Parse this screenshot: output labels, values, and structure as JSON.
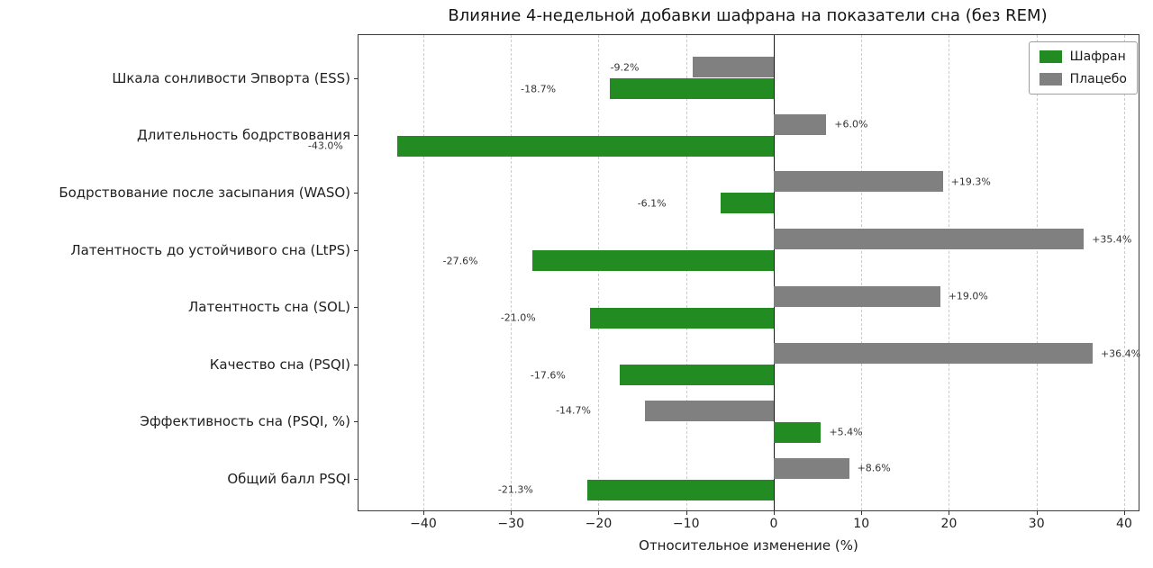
{
  "chart_data": {
    "type": "bar",
    "orientation": "horizontal",
    "title": "Влияние 4-недельной добавки шафрана на показатели сна (без REM)",
    "xlabel": "Относительное изменение (%)",
    "ylabel": "",
    "categories": [
      "Шкала сонливости Эпворта (ESS)",
      "Длительность бодрствования",
      "Бодрствование после засыпания (WASO)",
      "Латентность до устойчивого сна (LtPS)",
      "Латентность сна (SOL)",
      "Качество сна (PSQI)",
      "Эффективность сна (PSQI, %)",
      "Общий балл PSQI"
    ],
    "series": [
      {
        "name": "Шафран",
        "color": "#228B22",
        "values": [
          -18.7,
          -43.0,
          -6.1,
          -27.6,
          -21.0,
          -17.6,
          5.4,
          -21.3
        ],
        "labels": [
          "-18.7%",
          "-43.0%",
          "-6.1%",
          "-27.6%",
          "-21.0%",
          "-17.6%",
          "+5.4%",
          "-21.3%"
        ]
      },
      {
        "name": "Плацебо",
        "color": "#808080",
        "values": [
          -9.2,
          6.0,
          19.3,
          35.4,
          19.0,
          36.4,
          -14.7,
          8.6
        ],
        "labels": [
          "-9.2%",
          "+6.0%",
          "+19.3%",
          "+35.4%",
          "+19.0%",
          "+36.4%",
          "-14.7%",
          "+8.6%"
        ]
      }
    ],
    "x_ticks": [
      -40,
      -30,
      -20,
      -10,
      0,
      10,
      20,
      30,
      40
    ],
    "x_tick_labels": [
      "−40",
      "−30",
      "−20",
      "−10",
      "0",
      "10",
      "20",
      "30",
      "40"
    ],
    "xlim": [
      -47.4,
      41.65
    ],
    "grid": "vertical-dashed",
    "legend_position": "upper right",
    "zero_line": 0
  }
}
